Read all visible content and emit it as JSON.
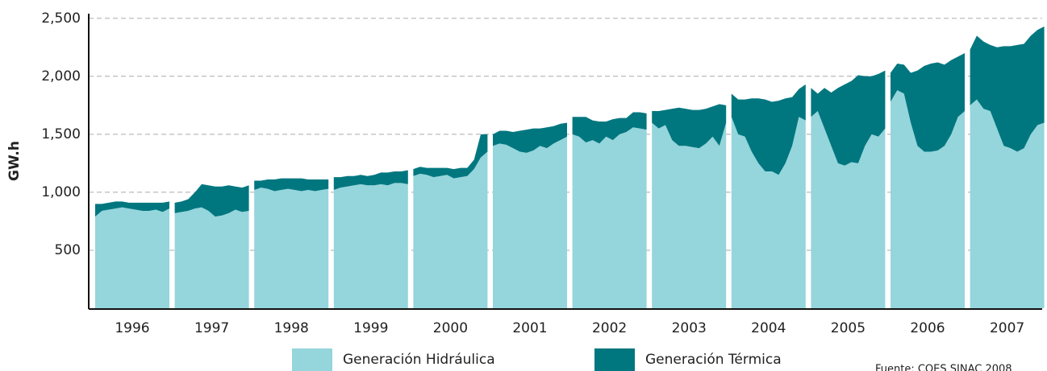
{
  "chart_data": {
    "type": "stacked-area",
    "y_label": "GW.h",
    "source": "Fuente: COES SINAC 2008",
    "categories": [
      "1996",
      "1997",
      "1998",
      "1999",
      "2000",
      "2001",
      "2002",
      "2003",
      "2004",
      "2005",
      "2006",
      "2007"
    ],
    "ylim": [
      0,
      2540
    ],
    "yticks": [
      500,
      {
        "value": 1000,
        "label": "1,000"
      },
      {
        "value": 1500,
        "label": "1,500"
      },
      {
        "value": 2000,
        "label": "2,000"
      },
      {
        "value": 2500,
        "label": "2,500"
      }
    ],
    "grid": true,
    "series": [
      {
        "name": "Generación Hidráulica",
        "color": "#95d5dc",
        "values": [
          [
            790,
            840,
            850,
            860,
            870,
            860,
            850,
            840,
            840,
            850,
            830,
            860
          ],
          [
            820,
            830,
            840,
            860,
            870,
            840,
            790,
            800,
            820,
            850,
            830,
            840
          ],
          [
            1020,
            1040,
            1030,
            1010,
            1020,
            1030,
            1020,
            1010,
            1020,
            1010,
            1020,
            1030
          ],
          [
            1020,
            1040,
            1050,
            1060,
            1070,
            1060,
            1060,
            1070,
            1060,
            1080,
            1080,
            1070
          ],
          [
            1140,
            1160,
            1150,
            1130,
            1140,
            1150,
            1120,
            1130,
            1140,
            1200,
            1300,
            1350
          ],
          [
            1400,
            1420,
            1410,
            1380,
            1350,
            1340,
            1360,
            1400,
            1380,
            1420,
            1450,
            1480
          ],
          [
            1500,
            1480,
            1430,
            1450,
            1420,
            1480,
            1450,
            1500,
            1520,
            1560,
            1550,
            1540
          ],
          [
            1600,
            1550,
            1580,
            1450,
            1400,
            1400,
            1390,
            1380,
            1420,
            1480,
            1400,
            1600
          ],
          [
            1650,
            1500,
            1480,
            1350,
            1250,
            1180,
            1180,
            1150,
            1250,
            1400,
            1650,
            1620
          ],
          [
            1650,
            1700,
            1550,
            1400,
            1250,
            1230,
            1260,
            1250,
            1400,
            1500,
            1480,
            1550
          ],
          [
            1780,
            1880,
            1850,
            1600,
            1400,
            1350,
            1350,
            1360,
            1400,
            1500,
            1650,
            1700
          ],
          [
            1750,
            1800,
            1720,
            1700,
            1550,
            1400,
            1380,
            1350,
            1380,
            1500,
            1580,
            1600
          ]
        ]
      },
      {
        "name": "Generación Térmica",
        "color": "#00777f",
        "values": [
          [
            110,
            60,
            60,
            60,
            50,
            50,
            60,
            70,
            70,
            60,
            80,
            60
          ],
          [
            90,
            90,
            100,
            140,
            200,
            220,
            260,
            250,
            240,
            200,
            210,
            220
          ],
          [
            80,
            60,
            80,
            100,
            100,
            90,
            100,
            110,
            90,
            100,
            90,
            80
          ],
          [
            110,
            90,
            90,
            80,
            80,
            80,
            90,
            100,
            110,
            100,
            100,
            120
          ],
          [
            60,
            60,
            60,
            80,
            70,
            60,
            80,
            80,
            70,
            80,
            200,
            150
          ],
          [
            100,
            110,
            120,
            140,
            180,
            200,
            190,
            150,
            180,
            150,
            140,
            120
          ],
          [
            150,
            170,
            220,
            170,
            190,
            130,
            180,
            140,
            120,
            130,
            140,
            140
          ],
          [
            100,
            150,
            130,
            270,
            330,
            320,
            320,
            330,
            300,
            260,
            360,
            150
          ],
          [
            200,
            300,
            320,
            460,
            560,
            620,
            600,
            640,
            560,
            420,
            240,
            310
          ],
          [
            250,
            150,
            350,
            460,
            650,
            700,
            700,
            760,
            600,
            500,
            540,
            500
          ],
          [
            250,
            230,
            250,
            430,
            650,
            740,
            760,
            760,
            700,
            640,
            520,
            500
          ],
          [
            480,
            550,
            580,
            570,
            700,
            860,
            880,
            920,
            900,
            850,
            820,
            830
          ]
        ]
      }
    ]
  }
}
